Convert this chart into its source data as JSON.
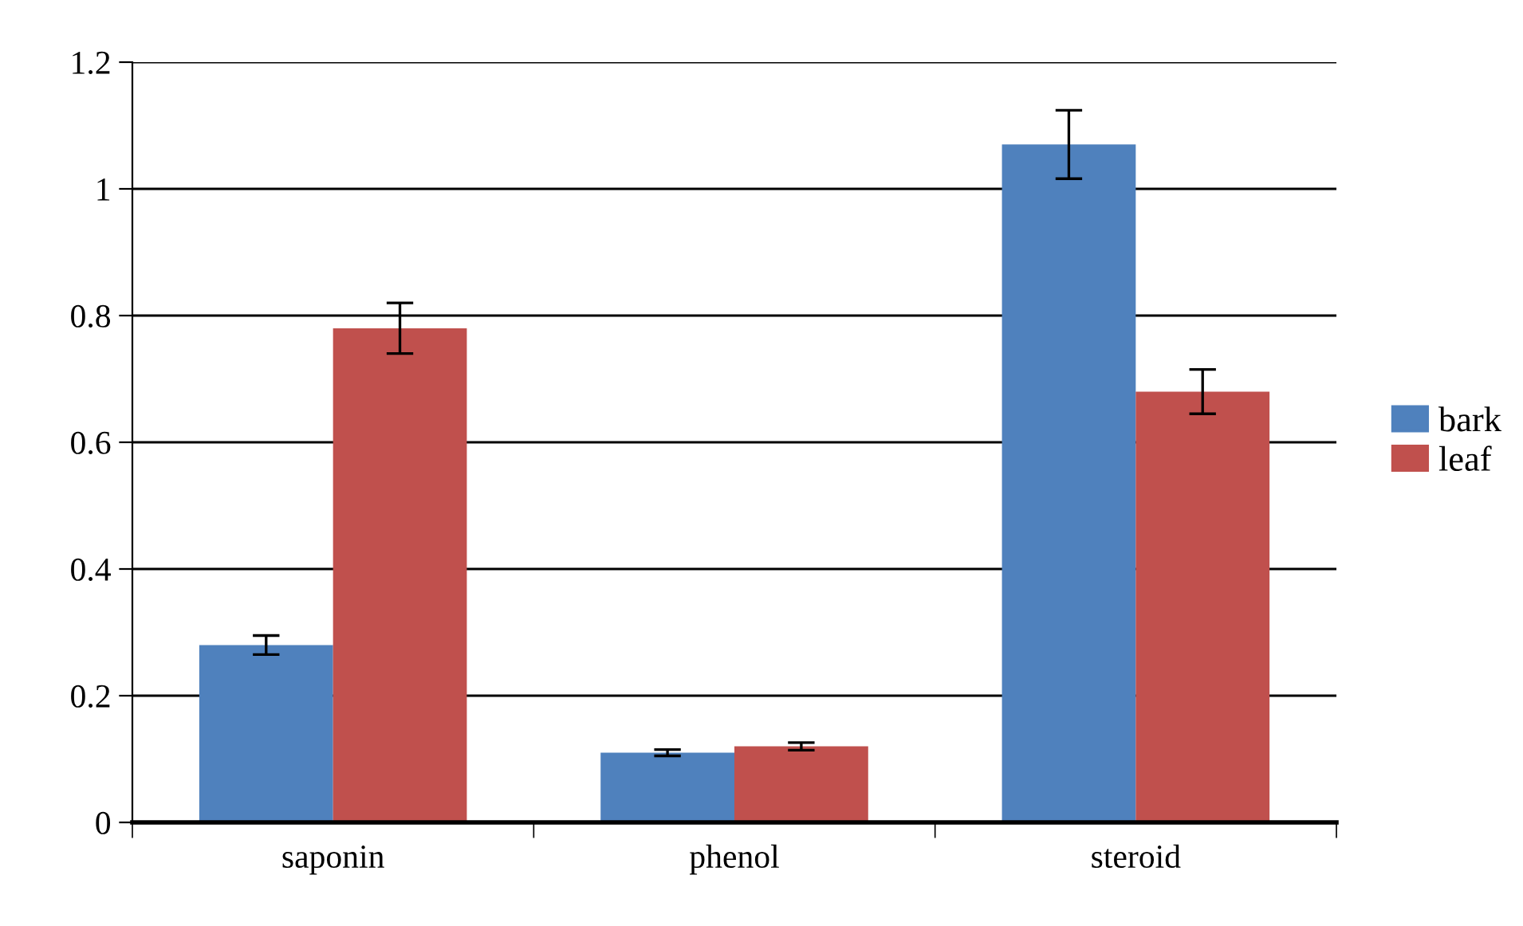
{
  "chart_data": {
    "type": "bar",
    "categories": [
      "saponin",
      "phenol",
      "steroid"
    ],
    "series": [
      {
        "name": "bark",
        "color": "#4f81bd",
        "values": [
          0.28,
          0.11,
          1.07
        ],
        "errors": [
          0.015,
          0.005,
          0.054
        ]
      },
      {
        "name": "leaf",
        "color": "#c0504d",
        "values": [
          0.78,
          0.12,
          0.68
        ],
        "errors": [
          0.04,
          0.006,
          0.035
        ]
      }
    ],
    "ylim": [
      0,
      1.2
    ],
    "yticks": [
      0,
      0.2,
      0.4,
      0.6,
      0.8,
      1,
      1.2
    ],
    "grid": "y",
    "legend": "right"
  }
}
